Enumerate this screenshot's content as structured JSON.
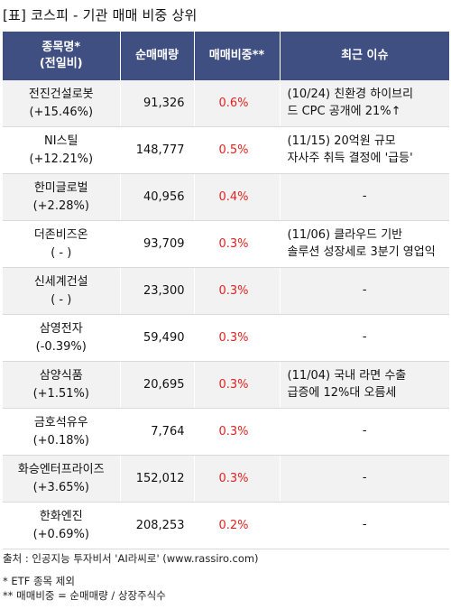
{
  "title": "[표] 코스피 - 기관 매매 비중 상위",
  "headers": {
    "name_line1": "종목명*",
    "name_line2": "(전일비)",
    "volume": "순매매량",
    "ratio": "매매비중**",
    "issue": "최근 이슈"
  },
  "rows": [
    {
      "name": "전진건설로봇",
      "change": "(+15.46%)",
      "volume": "91,326",
      "ratio": "0.6%",
      "issue_line1": "(10/24) 친환경 하이브리",
      "issue_line2": "드 CPC 공개에 21%↑"
    },
    {
      "name": "NI스틸",
      "change": "(+12.21%)",
      "volume": "148,777",
      "ratio": "0.5%",
      "issue_line1": "(11/15) 20억원 규모",
      "issue_line2": "자사주 취득 결정에 '급등'"
    },
    {
      "name": "한미글로벌",
      "change": "(+2.28%)",
      "volume": "40,956",
      "ratio": "0.4%",
      "issue_line1": "-",
      "issue_line2": ""
    },
    {
      "name": "더존비즈온",
      "change": "( - )",
      "volume": "93,709",
      "ratio": "0.3%",
      "issue_line1": "(11/06) 클라우드 기반",
      "issue_line2": "솔루션 성장세로 3분기 영업익"
    },
    {
      "name": "신세계건설",
      "change": "( - )",
      "volume": "23,300",
      "ratio": "0.3%",
      "issue_line1": "-",
      "issue_line2": ""
    },
    {
      "name": "삼영전자",
      "change": "(-0.39%)",
      "volume": "59,490",
      "ratio": "0.3%",
      "issue_line1": "-",
      "issue_line2": ""
    },
    {
      "name": "삼양식품",
      "change": "(+1.51%)",
      "volume": "20,695",
      "ratio": "0.3%",
      "issue_line1": "(11/04) 국내 라면 수출",
      "issue_line2": " 급증에 12%대 오름세"
    },
    {
      "name": "금호석유우",
      "change": "(+0.18%)",
      "volume": "7,764",
      "ratio": "0.3%",
      "issue_line1": "-",
      "issue_line2": ""
    },
    {
      "name": "화승엔터프라이즈",
      "change": "(+3.65%)",
      "volume": "152,012",
      "ratio": "0.3%",
      "issue_line1": "-",
      "issue_line2": ""
    },
    {
      "name": "한화엔진",
      "change": "(+0.69%)",
      "volume": "208,253",
      "ratio": "0.2%",
      "issue_line1": "-",
      "issue_line2": ""
    }
  ],
  "source": "출처 : 인공지능 투자비서 'AI라씨로' (www.rassiro.com)",
  "note1": "* ETF 종목 제외",
  "note2": "** 매매비중 = 순매매량 / 상장주식수",
  "colors": {
    "header_bg": "#3f4f82",
    "ratio_text": "#e0241f",
    "row_alt": "#f2f2f2"
  }
}
